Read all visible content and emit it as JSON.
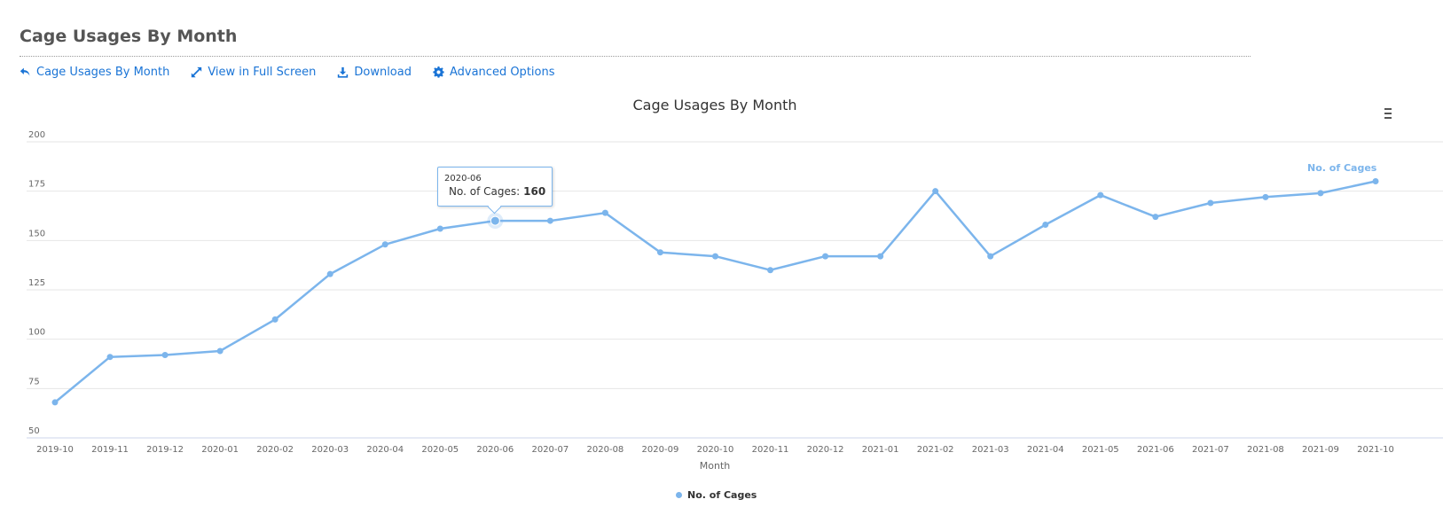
{
  "header": {
    "title": "Cage Usages By Month"
  },
  "toolbar": {
    "back_label": "Cage Usages By Month",
    "fullscreen_label": "View in Full Screen",
    "download_label": "Download",
    "advanced_label": "Advanced Options"
  },
  "icons": {
    "back": "reply-arrow-icon",
    "fullscreen": "expand-arrows-icon",
    "download": "download-icon",
    "advanced": "gear-icon",
    "chart_menu": "hamburger-menu-icon"
  },
  "colors": {
    "series": "#7cb5ec",
    "link": "#1a74d6",
    "grid": "#e6e6e6",
    "axis_line": "#ccd6eb"
  },
  "tooltip": {
    "header": "2020-06",
    "series_label": "No. of Cages:",
    "value": "160"
  },
  "chart_data": {
    "type": "line",
    "title": "Cage Usages By Month",
    "xlabel": "Month",
    "ylabel": "",
    "ylim": [
      50,
      200
    ],
    "yticks": [
      50,
      75,
      100,
      125,
      150,
      175,
      200
    ],
    "grid": true,
    "legend_position": "bottom-center",
    "categories": [
      "2019-10",
      "2019-11",
      "2019-12",
      "2020-01",
      "2020-02",
      "2020-03",
      "2020-04",
      "2020-05",
      "2020-06",
      "2020-07",
      "2020-08",
      "2020-09",
      "2020-10",
      "2020-11",
      "2020-12",
      "2021-01",
      "2021-02",
      "2021-03",
      "2021-04",
      "2021-05",
      "2021-06",
      "2021-07",
      "2021-08",
      "2021-09",
      "2021-10"
    ],
    "series": [
      {
        "name": "No. of Cages",
        "values": [
          68,
          91,
          92,
          94,
          110,
          133,
          148,
          156,
          160,
          160,
          164,
          144,
          142,
          135,
          142,
          142,
          175,
          142,
          158,
          173,
          162,
          169,
          172,
          174,
          180
        ]
      }
    ],
    "highlighted_category": "2020-06"
  }
}
